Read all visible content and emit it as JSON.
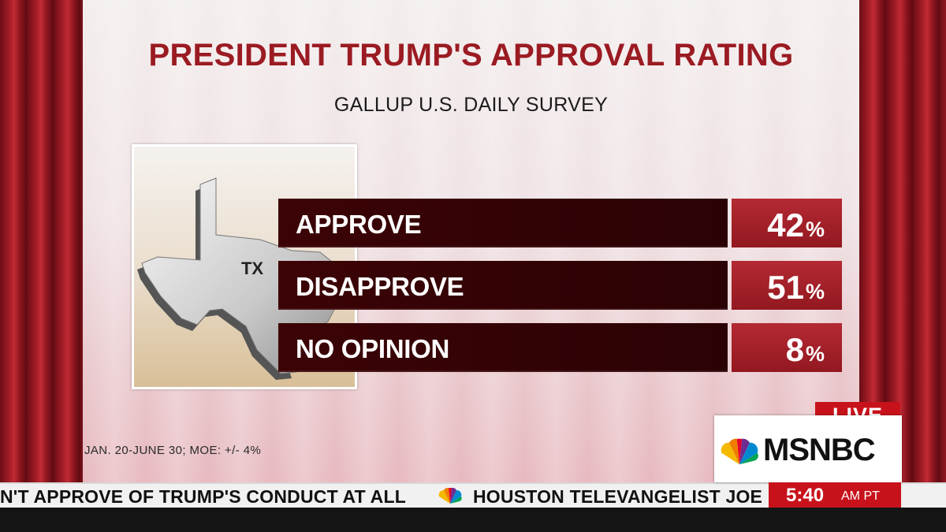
{
  "chart_data": {
    "type": "bar",
    "title": "PRESIDENT TRUMP'S APPROVAL RATING",
    "subtitle": "GALLUP U.S. DAILY SURVEY",
    "categories": [
      "APPROVE",
      "DISAPPROVE",
      "NO OPINION"
    ],
    "values": [
      42,
      51,
      8
    ],
    "value_labels": [
      "42",
      "51",
      "8"
    ],
    "unit": "%",
    "map_label": "TX",
    "footnote": "JAN. 20-JUNE 30; MOE: +/- 4%"
  },
  "ticker": {
    "left_text": "N'T APPROVE OF TRUMP'S CONDUCT AT ALL",
    "right_text": "HOUSTON TELEVANGELIST JOE",
    "separator_icon": "nbc-peacock-icon"
  },
  "network": {
    "live": "LIVE",
    "brand": "MSNBC",
    "time": "5:40",
    "ampm": "AM PT",
    "logo_icon": "nbc-peacock-icon"
  },
  "colors": {
    "title": "#9b1b22",
    "label_box": "#3c0306",
    "value_box": "#a82129",
    "live_red": "#c8121b"
  }
}
